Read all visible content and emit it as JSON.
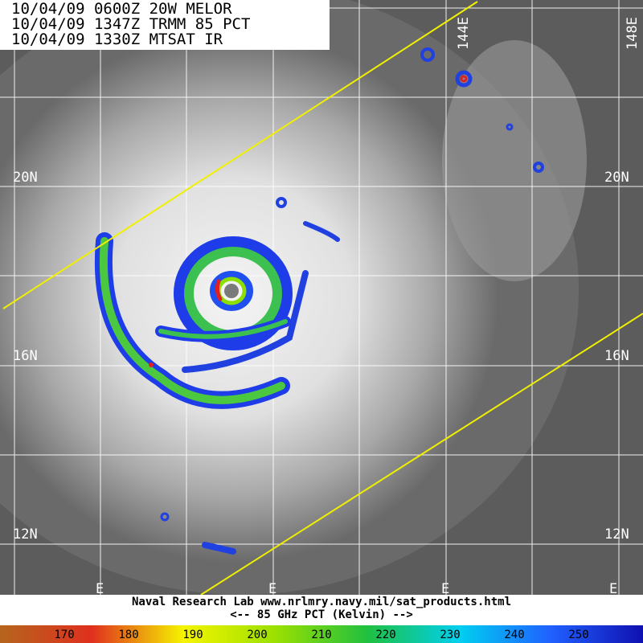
{
  "header": {
    "lines": [
      "10/04/09 0600Z 20W MELOR",
      "10/04/09 1347Z TRMM 85 PCT",
      "10/04/09 1330Z MTSAT IR"
    ]
  },
  "latitude_labels": [
    "20N",
    "16N",
    "12N"
  ],
  "longitude_labels": [
    "144E",
    "148E"
  ],
  "bottom_edge_labels": [
    "E",
    "E",
    "E",
    "E"
  ],
  "footer": {
    "credit": "Naval Research Lab  www.nrlmry.navy.mil/sat_products.html",
    "caption": "<--   85 GHz PCT (Kelvin)  -->"
  },
  "colorbar": {
    "ticks": [
      170,
      180,
      190,
      200,
      210,
      220,
      230,
      240,
      250
    ],
    "colors": [
      "#b5651d",
      "#e0301e",
      "#f5f500",
      "#9be000",
      "#20c040",
      "#00d0f0",
      "#2060ff",
      "#1010b0"
    ]
  }
}
